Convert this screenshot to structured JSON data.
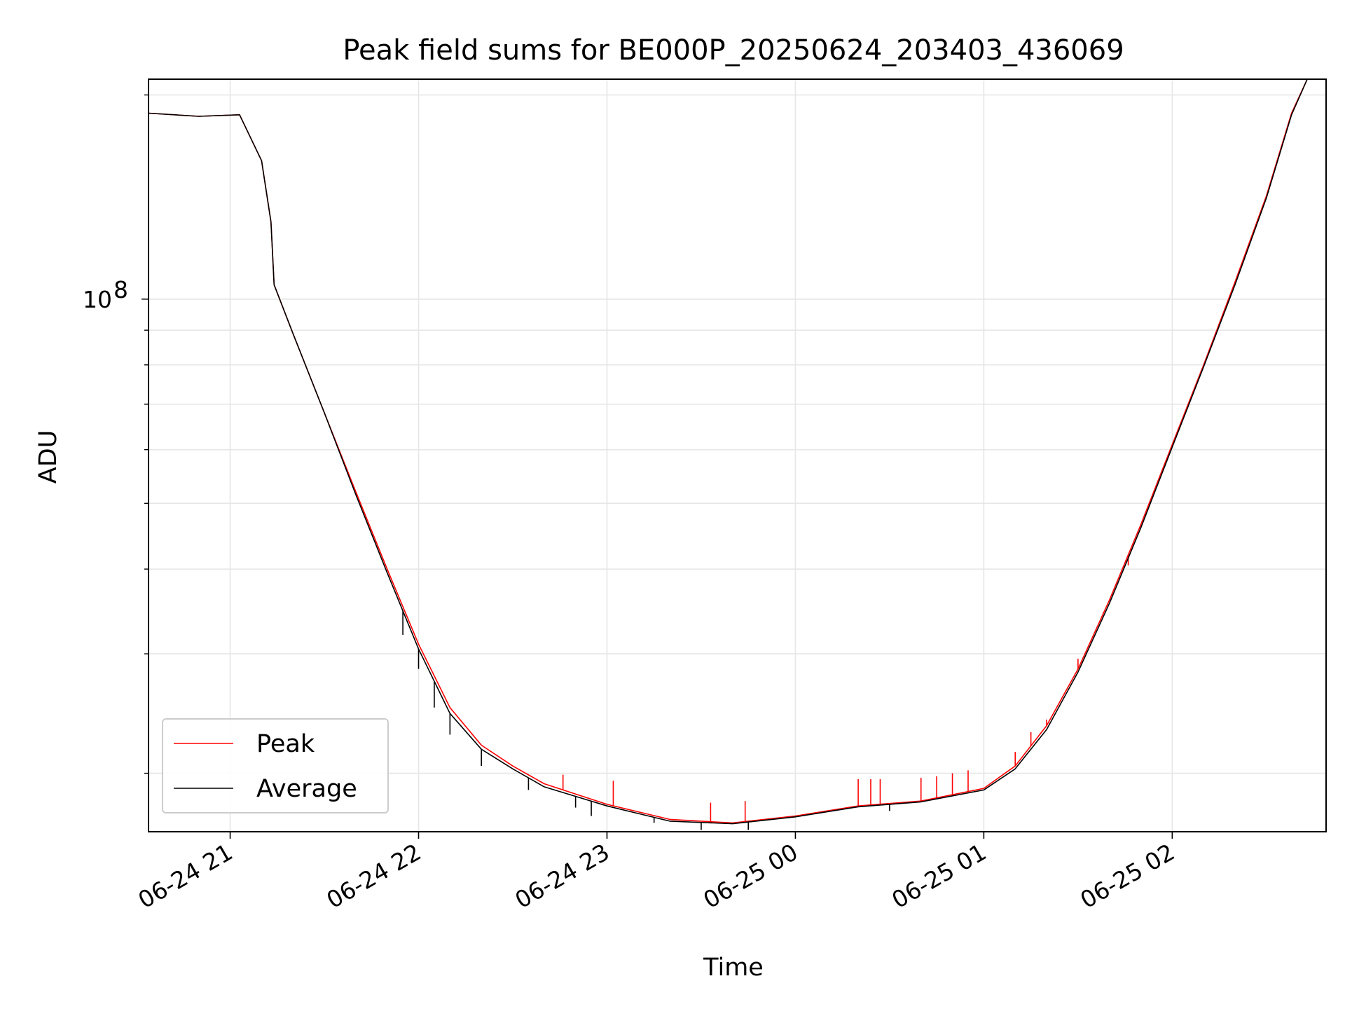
{
  "chart_data": {
    "type": "line",
    "title": "Peak field sums for BE000P_20250624_203403_436069",
    "xlabel": "Time",
    "ylabel": "ADU",
    "yscale": "log",
    "grid": true,
    "legend_placement": "lower-left",
    "x_ticks": [
      "06-24 21",
      "06-24 22",
      "06-24 23",
      "06-25 00",
      "06-25 01",
      "06-25 02"
    ],
    "xlim": [
      "2025-06-24 20:34",
      "2025-06-25 02:49"
    ],
    "ylim": [
      16400000,
      211000000
    ],
    "y_ticks": [
      {
        "value": 100000000,
        "base": "10",
        "exp": "8"
      }
    ],
    "x_tick_rotation_deg": 30,
    "series": [
      {
        "name": "Peak",
        "color": "#ff0000",
        "points": [
          [
            "2025-06-24 20:34",
            188000000
          ],
          [
            "2025-06-24 20:50",
            186000000
          ],
          [
            "2025-06-24 21:03",
            187000000
          ],
          [
            "2025-06-24 21:10",
            160000000
          ],
          [
            "2025-06-24 21:13",
            130000000
          ],
          [
            "2025-06-24 21:14",
            105000000
          ],
          [
            "2025-06-24 21:20",
            89000000
          ],
          [
            "2025-06-24 21:30",
            68000000
          ],
          [
            "2025-06-24 21:40",
            52000000
          ],
          [
            "2025-06-24 21:50",
            40000000
          ],
          [
            "2025-06-24 22:00",
            31000000
          ],
          [
            "2025-06-24 22:10",
            25000000
          ],
          [
            "2025-06-24 22:20",
            22000000
          ],
          [
            "2025-06-24 22:30",
            20500000
          ],
          [
            "2025-06-24 22:40",
            19300000
          ],
          [
            "2025-06-24 23:00",
            18000000
          ],
          [
            "2025-06-24 23:20",
            17100000
          ],
          [
            "2025-06-24 23:40",
            16900000
          ],
          [
            "2025-06-25 00:00",
            17300000
          ],
          [
            "2025-06-25 00:20",
            17900000
          ],
          [
            "2025-06-25 00:40",
            18200000
          ],
          [
            "2025-06-25 01:00",
            19000000
          ],
          [
            "2025-06-25 01:10",
            20500000
          ],
          [
            "2025-06-25 01:20",
            23500000
          ],
          [
            "2025-06-25 01:30",
            28500000
          ],
          [
            "2025-06-25 01:40",
            36000000
          ],
          [
            "2025-06-25 01:50",
            46500000
          ],
          [
            "2025-06-25 02:00",
            61000000
          ],
          [
            "2025-06-25 02:10",
            80000000
          ],
          [
            "2025-06-25 02:20",
            106000000
          ],
          [
            "2025-06-25 02:30",
            142000000
          ],
          [
            "2025-06-25 02:38",
            188000000
          ],
          [
            "2025-06-25 02:43",
            211000000
          ],
          [
            "2025-06-25 02:49",
            211000000
          ]
        ],
        "spikes": [
          [
            "2025-06-24 22:46",
            19900000
          ],
          [
            "2025-06-24 23:02",
            19500000
          ],
          [
            "2025-06-24 23:33",
            18100000
          ],
          [
            "2025-06-24 23:44",
            18200000
          ],
          [
            "2025-06-25 00:20",
            19600000
          ],
          [
            "2025-06-25 00:24",
            19600000
          ],
          [
            "2025-06-25 00:27",
            19600000
          ],
          [
            "2025-06-25 00:40",
            19700000
          ],
          [
            "2025-06-25 00:45",
            19800000
          ],
          [
            "2025-06-25 00:50",
            20000000
          ],
          [
            "2025-06-25 00:55",
            20200000
          ],
          [
            "2025-06-25 01:10",
            21500000
          ],
          [
            "2025-06-25 01:15",
            23000000
          ],
          [
            "2025-06-25 01:20",
            24000000
          ],
          [
            "2025-06-25 01:30",
            29500000
          ],
          [
            "2025-06-25 01:38",
            34500000
          ],
          [
            "2025-06-25 01:46",
            40500000
          ]
        ]
      },
      {
        "name": "Average",
        "color": "#000000",
        "points": [
          [
            "2025-06-24 20:34",
            188000000
          ],
          [
            "2025-06-24 20:50",
            186000000
          ],
          [
            "2025-06-24 21:03",
            187000000
          ],
          [
            "2025-06-24 21:10",
            160000000
          ],
          [
            "2025-06-24 21:13",
            130000000
          ],
          [
            "2025-06-24 21:14",
            105000000
          ],
          [
            "2025-06-24 21:20",
            89000000
          ],
          [
            "2025-06-24 21:30",
            68000000
          ],
          [
            "2025-06-24 21:40",
            51500000
          ],
          [
            "2025-06-24 21:50",
            39500000
          ],
          [
            "2025-06-24 22:00",
            30500000
          ],
          [
            "2025-06-24 22:10",
            24500000
          ],
          [
            "2025-06-24 22:20",
            21700000
          ],
          [
            "2025-06-24 22:30",
            20300000
          ],
          [
            "2025-06-24 22:40",
            19100000
          ],
          [
            "2025-06-24 23:00",
            17900000
          ],
          [
            "2025-06-24 23:20",
            17000000
          ],
          [
            "2025-06-24 23:40",
            16850000
          ],
          [
            "2025-06-25 00:00",
            17250000
          ],
          [
            "2025-06-25 00:20",
            17850000
          ],
          [
            "2025-06-25 00:40",
            18150000
          ],
          [
            "2025-06-25 01:00",
            18900000
          ],
          [
            "2025-06-25 01:10",
            20300000
          ],
          [
            "2025-06-25 01:20",
            23200000
          ],
          [
            "2025-06-25 01:30",
            28200000
          ],
          [
            "2025-06-25 01:40",
            35600000
          ],
          [
            "2025-06-25 01:50",
            46000000
          ],
          [
            "2025-06-25 02:00",
            60500000
          ],
          [
            "2025-06-25 02:10",
            79500000
          ],
          [
            "2025-06-25 02:20",
            105000000
          ],
          [
            "2025-06-25 02:30",
            141000000
          ],
          [
            "2025-06-25 02:38",
            187000000
          ],
          [
            "2025-06-25 02:43",
            211000000
          ],
          [
            "2025-06-25 02:49",
            211000000
          ]
        ],
        "dips": [
          [
            "2025-06-24 21:55",
            32000000
          ],
          [
            "2025-06-24 22:00",
            28500000
          ],
          [
            "2025-06-24 22:05",
            25000000
          ],
          [
            "2025-06-24 22:10",
            22800000
          ],
          [
            "2025-06-24 22:20",
            20500000
          ],
          [
            "2025-06-24 22:35",
            18900000
          ],
          [
            "2025-06-24 22:50",
            17800000
          ],
          [
            "2025-06-24 22:55",
            17300000
          ],
          [
            "2025-06-24 23:15",
            16900000
          ],
          [
            "2025-06-24 23:30",
            16500000
          ],
          [
            "2025-06-24 23:45",
            16500000
          ],
          [
            "2025-06-25 00:30",
            17600000
          ]
        ]
      }
    ]
  }
}
